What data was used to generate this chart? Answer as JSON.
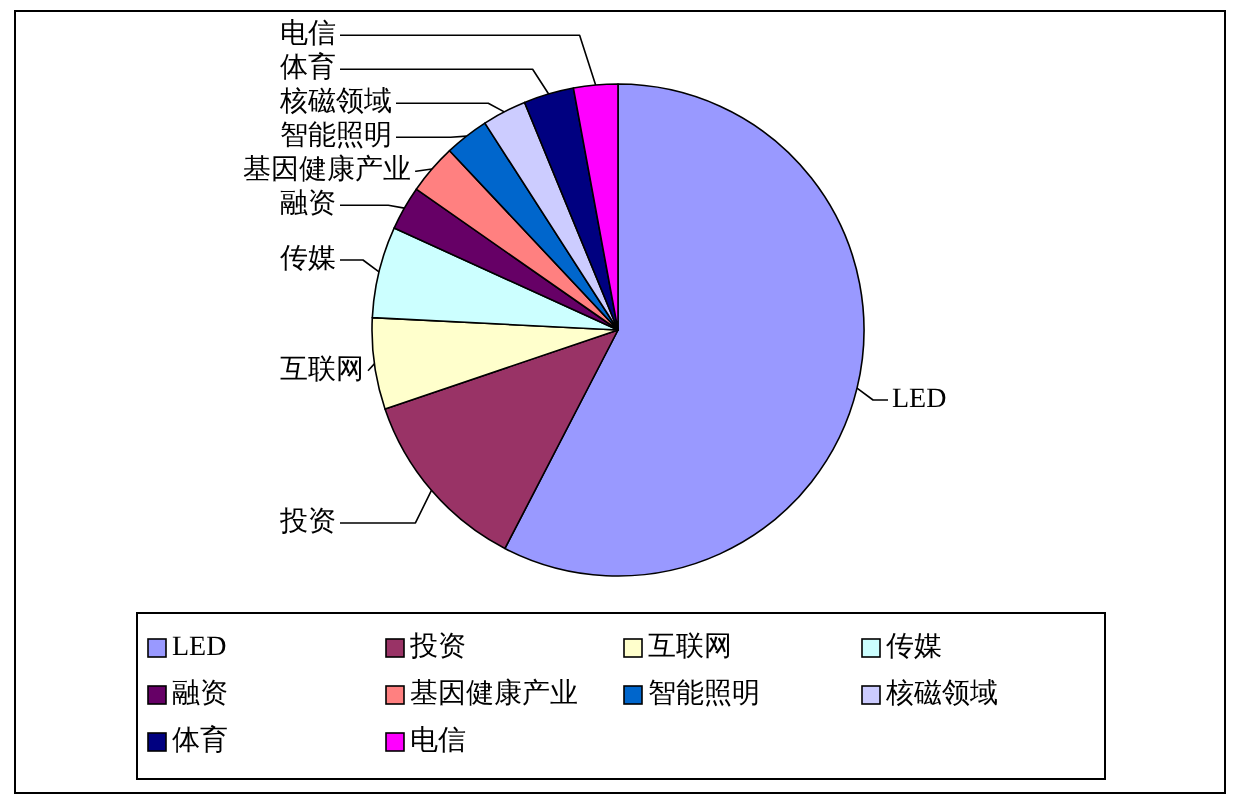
{
  "chart_data": {
    "type": "pie",
    "categories": [
      "LED",
      "投资",
      "互联网",
      "传媒",
      "融资",
      "基因健康产业",
      "智能照明",
      "核磁领域",
      "体育",
      "电信"
    ],
    "values": [
      57.6,
      12.2,
      6.0,
      6.0,
      2.9,
      3.3,
      2.9,
      2.9,
      3.3,
      2.9
    ],
    "colors": [
      "#9999ff",
      "#993366",
      "#ffffcc",
      "#ccffff",
      "#660066",
      "#ff8080",
      "#0066cc",
      "#ccccff",
      "#000080",
      "#ff00ff"
    ],
    "legend": "bottom"
  }
}
